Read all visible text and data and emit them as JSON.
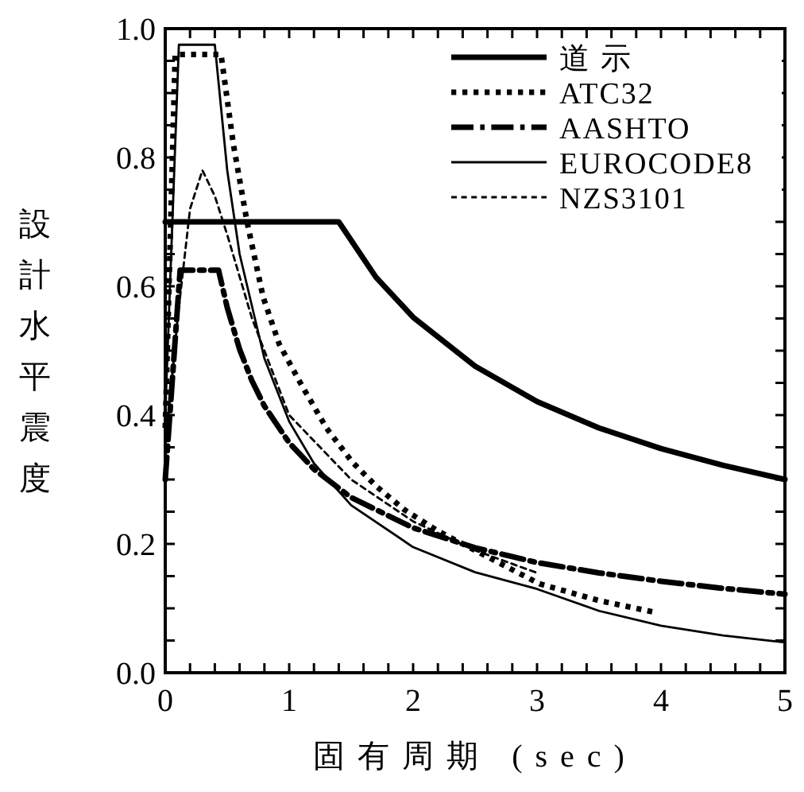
{
  "chart_data": {
    "type": "line",
    "xlabel": "固有周期 (sec)",
    "ylabel": "設計水平震度",
    "xlim": [
      0,
      5
    ],
    "ylim": [
      0,
      1
    ],
    "xticks": [
      0,
      {
        "value": 0.2,
        "label": null
      },
      {
        "value": 0.4,
        "label": null
      },
      {
        "value": 0.6,
        "label": null
      },
      {
        "value": 0.8,
        "label": null
      },
      1,
      {
        "value": 1.2,
        "label": null
      },
      {
        "value": 1.4,
        "label": null
      },
      {
        "value": 1.6,
        "label": null
      },
      {
        "value": 1.8,
        "label": null
      },
      2,
      {
        "value": 2.2,
        "label": null
      },
      {
        "value": 2.4,
        "label": null
      },
      {
        "value": 2.6,
        "label": null
      },
      {
        "value": 2.8,
        "label": null
      },
      3,
      {
        "value": 3.2,
        "label": null
      },
      {
        "value": 3.4,
        "label": null
      },
      {
        "value": 3.6,
        "label": null
      },
      {
        "value": 3.8,
        "label": null
      },
      4,
      {
        "value": 4.2,
        "label": null
      },
      {
        "value": 4.4,
        "label": null
      },
      {
        "value": 4.6,
        "label": null
      },
      {
        "value": 4.8,
        "label": null
      },
      5
    ],
    "yticks": [
      {
        "value": 0,
        "label": "0.0"
      },
      {
        "value": 0.05,
        "label": null
      },
      {
        "value": 0.1,
        "label": null
      },
      {
        "value": 0.15,
        "label": null
      },
      0.2,
      {
        "value": 0.25,
        "label": null
      },
      {
        "value": 0.3,
        "label": null
      },
      {
        "value": 0.35,
        "label": null
      },
      0.4,
      {
        "value": 0.45,
        "label": null
      },
      {
        "value": 0.5,
        "label": null
      },
      {
        "value": 0.55,
        "label": null
      },
      0.6,
      {
        "value": 0.65,
        "label": null
      },
      {
        "value": 0.7,
        "label": null
      },
      {
        "value": 0.75,
        "label": null
      },
      0.8,
      {
        "value": 0.85,
        "label": null
      },
      {
        "value": 0.9,
        "label": null
      },
      {
        "value": 0.95,
        "label": null
      },
      {
        "value": 1,
        "label": "1.0"
      }
    ],
    "grid": false,
    "legend": "top right",
    "series": [
      {
        "name": "道 示",
        "color": "#000000",
        "line_style": "solid",
        "x": [
          0,
          1.4,
          1.7,
          2,
          2.5,
          3,
          3.5,
          4,
          4.5,
          5
        ],
        "values": [
          0.7,
          0.7,
          0.614,
          0.552,
          0.476,
          0.421,
          0.38,
          0.348,
          0.322,
          0.3
        ]
      },
      {
        "name": "ATC32",
        "color": "#000000",
        "line_style": "dotted",
        "x": [
          0,
          0.08,
          0.45,
          0.55,
          0.66,
          0.79,
          0.92,
          1.09,
          1.3,
          1.51,
          1.7,
          1.93,
          2.2,
          2.52,
          2.75,
          3.02,
          3.5,
          3.97
        ],
        "values": [
          0.38,
          0.96,
          0.96,
          0.82,
          0.7,
          0.583,
          0.51,
          0.45,
          0.38,
          0.327,
          0.29,
          0.253,
          0.22,
          0.188,
          0.165,
          0.138,
          0.112,
          0.093
        ]
      },
      {
        "name": "AASHTO",
        "color": "#000000",
        "line_style": "dashdot",
        "x": [
          0,
          0.12,
          0.43,
          0.5,
          0.6,
          0.7,
          0.8,
          1,
          1.2,
          1.5,
          2,
          2.5,
          3,
          3.5,
          4,
          4.5,
          5
        ],
        "values": [
          0.3,
          0.625,
          0.625,
          0.567,
          0.502,
          0.453,
          0.414,
          0.357,
          0.316,
          0.272,
          0.225,
          0.194,
          0.171,
          0.155,
          0.142,
          0.131,
          0.122
        ]
      },
      {
        "name": "EUROCODE8",
        "color": "#000000",
        "line_style": "solid",
        "x": [
          0,
          0.11,
          0.4,
          0.5,
          0.6,
          0.8,
          1,
          1.2,
          1.5,
          2,
          2.5,
          3,
          3.5,
          4,
          4.5,
          5
        ],
        "values": [
          0.4,
          0.975,
          0.975,
          0.78,
          0.65,
          0.488,
          0.39,
          0.325,
          0.26,
          0.195,
          0.156,
          0.13,
          0.096,
          0.073,
          0.058,
          0.047
        ]
      },
      {
        "name": "NZS3101",
        "color": "#000000",
        "line_style": "dashed",
        "x": [
          0,
          0.1,
          0.2,
          0.3,
          0.4,
          0.5,
          0.7,
          1,
          1.5,
          2,
          2.5,
          3
        ],
        "values": [
          0.35,
          0.55,
          0.72,
          0.78,
          0.74,
          0.68,
          0.55,
          0.4,
          0.3,
          0.235,
          0.19,
          0.155
        ]
      }
    ]
  }
}
